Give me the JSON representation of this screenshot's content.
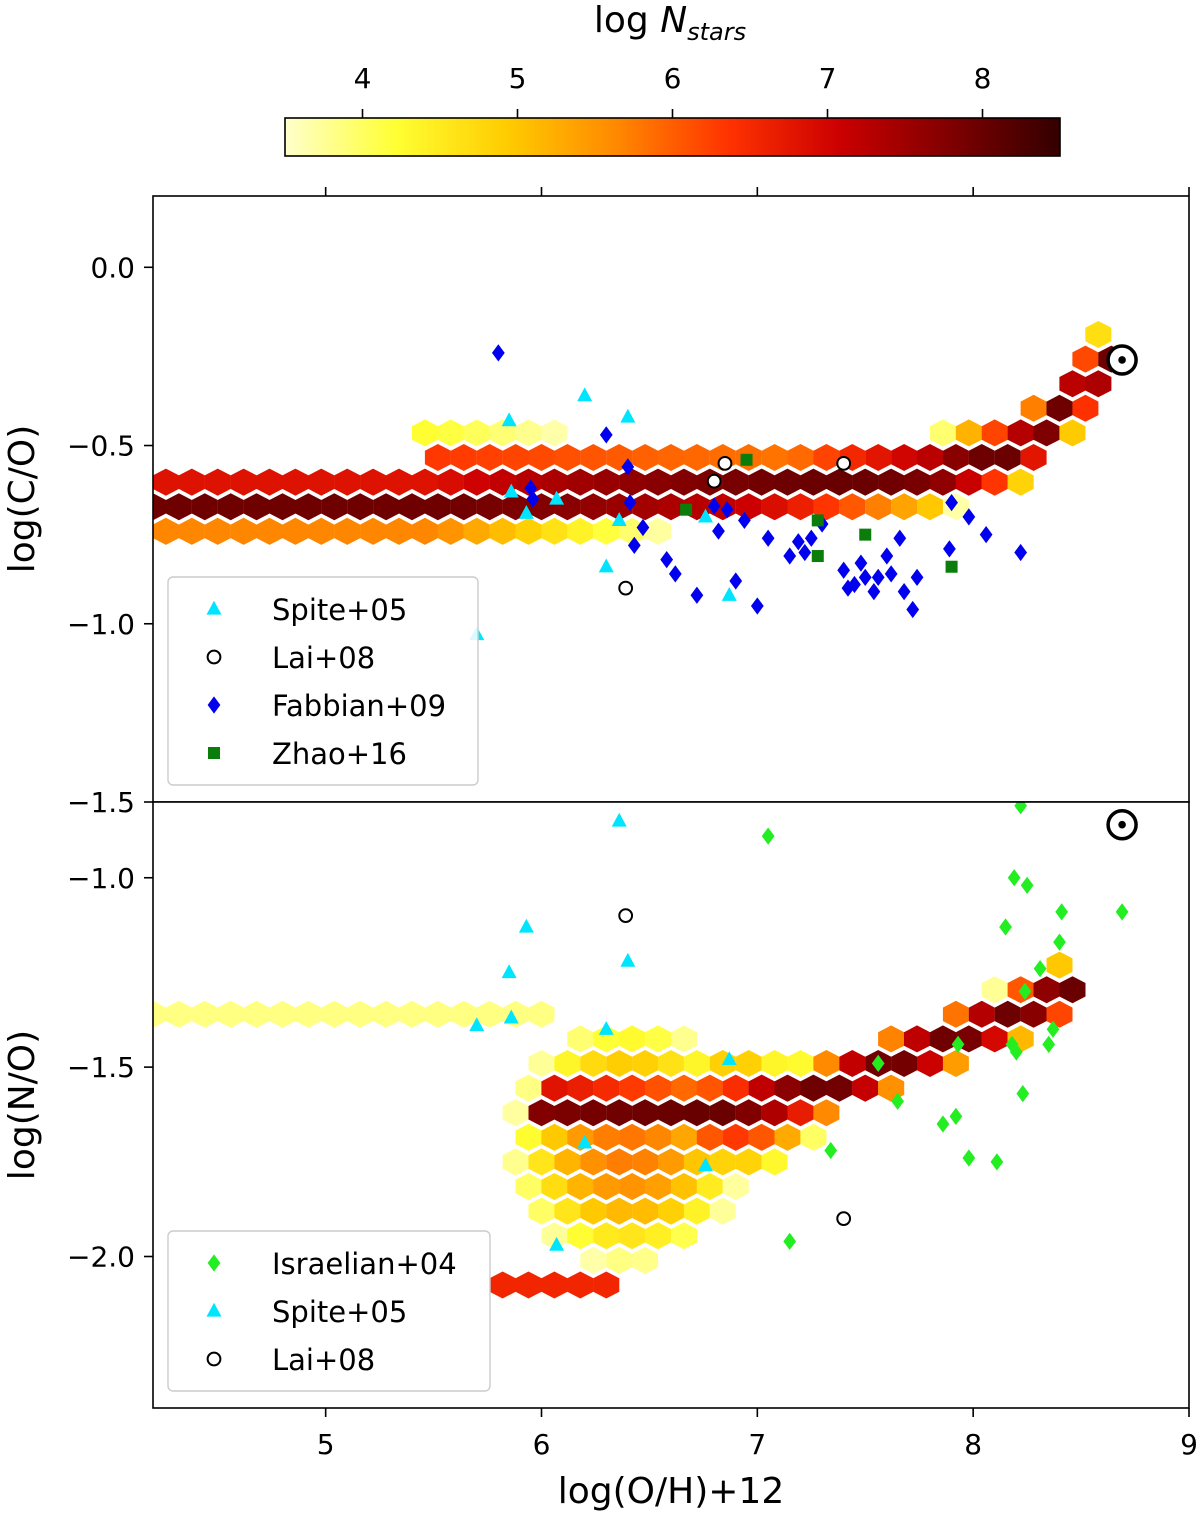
{
  "chart_data": {
    "type": "scatter",
    "colorbar": {
      "label_prefix": "log ",
      "label_var": "N",
      "label_sub": "stars",
      "range": [
        3.5,
        8.5
      ],
      "ticks": [
        "4",
        "5",
        "6",
        "7",
        "8"
      ],
      "colormap": [
        "#ffffcc",
        "#ffff33",
        "#ffcc00",
        "#ff8800",
        "#ff3300",
        "#cc0000",
        "#800000",
        "#330000"
      ]
    },
    "xaxis": {
      "label": "log(O/H)+12",
      "range": [
        4.2,
        9.0
      ],
      "ticks": [
        "5",
        "6",
        "7",
        "8",
        "9"
      ]
    },
    "panels": [
      {
        "name": "CO",
        "ylabel": "log(C/O)",
        "ylim": [
          -1.5,
          0.2
        ],
        "yticks": [
          "0.0",
          "−0.5",
          "−1.0",
          "−1.5"
        ],
        "sun": {
          "x": 8.69,
          "y": -0.26
        },
        "density_ridges": [
          {
            "pts": [
              [
                4.2,
                -0.66
              ],
              [
                5.5,
                -0.66
              ],
              [
                6.2,
                -0.64
              ],
              [
                7.0,
                -0.62
              ],
              [
                7.8,
                -0.58
              ],
              [
                8.2,
                -0.52
              ],
              [
                8.45,
                -0.38
              ],
              [
                8.6,
                -0.27
              ]
            ],
            "logn": 8.0,
            "spread": 0.05
          },
          {
            "pts": [
              [
                5.5,
                -0.56
              ],
              [
                6.5,
                -0.58
              ],
              [
                7.5,
                -0.59
              ],
              [
                8.0,
                -0.56
              ]
            ],
            "logn": 6.5,
            "spread": 0.06
          }
        ],
        "legend": [
          "Spite+05",
          "Lai+08",
          "Fabbian+09",
          "Zhao+16"
        ],
        "series": [
          {
            "name": "Spite+05",
            "marker": "triangle",
            "color": "#00e5ff",
            "x": [
              5.7,
              5.85,
              5.86,
              5.93,
              6.07,
              6.2,
              6.3,
              6.36,
              6.4,
              6.76,
              6.87
            ],
            "y": [
              -1.03,
              -0.43,
              -0.63,
              -0.69,
              -0.65,
              -0.36,
              -0.84,
              -0.71,
              -0.42,
              -0.7,
              -0.92
            ]
          },
          {
            "name": "Lai+08",
            "marker": "circle-open",
            "color": "#000000",
            "x": [
              6.39,
              6.8,
              6.85,
              7.4
            ],
            "y": [
              -0.9,
              -0.6,
              -0.55,
              -0.55
            ]
          },
          {
            "name": "Fabbian+09",
            "marker": "diamond",
            "color": "#0000ee",
            "x": [
              5.8,
              5.95,
              5.96,
              6.3,
              6.4,
              6.41,
              6.43,
              6.47,
              6.58,
              6.62,
              6.72,
              6.8,
              6.82,
              6.86,
              6.9,
              6.94,
              7.0,
              7.05,
              7.15,
              7.19,
              7.22,
              7.25,
              7.3,
              7.4,
              7.42,
              7.45,
              7.48,
              7.5,
              7.54,
              7.56,
              7.6,
              7.62,
              7.66,
              7.68,
              7.72,
              7.74,
              7.89,
              7.9,
              7.98,
              8.06,
              8.22
            ],
            "y": [
              -0.24,
              -0.62,
              -0.65,
              -0.47,
              -0.56,
              -0.66,
              -0.78,
              -0.73,
              -0.82,
              -0.86,
              -0.92,
              -0.67,
              -0.74,
              -0.68,
              -0.88,
              -0.71,
              -0.95,
              -0.76,
              -0.81,
              -0.77,
              -0.8,
              -0.76,
              -0.72,
              -0.85,
              -0.9,
              -0.89,
              -0.83,
              -0.87,
              -0.91,
              -0.87,
              -0.81,
              -0.86,
              -0.76,
              -0.91,
              -0.96,
              -0.87,
              -0.79,
              -0.66,
              -0.7,
              -0.75,
              -0.8
            ]
          },
          {
            "name": "Zhao+16",
            "marker": "square",
            "color": "#0a7d0a",
            "x": [
              6.67,
              6.95,
              7.28,
              7.28,
              7.5,
              7.9
            ],
            "y": [
              -0.68,
              -0.54,
              -0.71,
              -0.81,
              -0.75,
              -0.84
            ]
          }
        ]
      },
      {
        "name": "NO",
        "ylabel": "log(N/O)",
        "ylim": [
          -2.4,
          -0.8
        ],
        "yticks": [
          "−1.0",
          "−1.5",
          "−2.0"
        ],
        "sun": {
          "x": 8.69,
          "y": -0.86
        },
        "density_ridges": [
          {
            "pts": [
              [
                4.2,
                -1.37
              ],
              [
                5.5,
                -1.37
              ],
              [
                6.0,
                -1.37
              ]
            ],
            "logn": 4.2,
            "spread": 0.015
          },
          {
            "pts": [
              [
                6.0,
                -1.6
              ],
              [
                6.8,
                -1.62
              ],
              [
                7.3,
                -1.56
              ],
              [
                7.8,
                -1.45
              ],
              [
                8.2,
                -1.36
              ],
              [
                8.45,
                -1.29
              ]
            ],
            "logn": 8.0,
            "spread": 0.04
          },
          {
            "pts": [
              [
                5.8,
                -2.08
              ],
              [
                6.3,
                -2.08
              ]
            ],
            "logn": 6.6,
            "spread": 0.02
          }
        ],
        "density_blobs": [
          {
            "x": 6.4,
            "y": -1.7,
            "sx": 0.55,
            "sy": 0.33,
            "logn": 5.8
          },
          {
            "x": 6.9,
            "y": -1.62,
            "sx": 0.35,
            "sy": 0.14,
            "logn": 6.8
          }
        ],
        "legend": [
          "Israelian+04",
          "Spite+05",
          "Lai+08"
        ],
        "series": [
          {
            "name": "Israelian+04",
            "marker": "diamond",
            "color": "#22ee22",
            "x": [
              7.05,
              7.15,
              7.34,
              7.56,
              7.65,
              7.86,
              7.92,
              7.93,
              7.98,
              8.11,
              8.15,
              8.18,
              8.19,
              8.2,
              8.22,
              8.23,
              8.24,
              8.25,
              8.31,
              8.35,
              8.37,
              8.4,
              8.41,
              8.69
            ],
            "y": [
              -0.89,
              -1.96,
              -1.72,
              -1.49,
              -1.59,
              -1.65,
              -1.63,
              -1.44,
              -1.74,
              -1.75,
              -1.13,
              -1.44,
              -1.0,
              -1.46,
              -0.81,
              -1.57,
              -1.3,
              -1.02,
              -1.24,
              -1.44,
              -1.4,
              -1.17,
              -1.09,
              -1.09
            ]
          },
          {
            "name": "Spite+05",
            "marker": "triangle",
            "color": "#00e5ff",
            "x": [
              5.7,
              5.85,
              5.86,
              5.93,
              6.07,
              6.2,
              6.3,
              6.36,
              6.4,
              6.76,
              6.87
            ],
            "y": [
              -1.39,
              -1.25,
              -1.37,
              -1.13,
              -1.97,
              -1.7,
              -1.4,
              -0.85,
              -1.22,
              -1.76,
              -1.48
            ]
          },
          {
            "name": "Lai+08",
            "marker": "circle-open",
            "color": "#000000",
            "x": [
              6.39,
              7.4
            ],
            "y": [
              -1.1,
              -1.9
            ]
          }
        ]
      }
    ]
  }
}
